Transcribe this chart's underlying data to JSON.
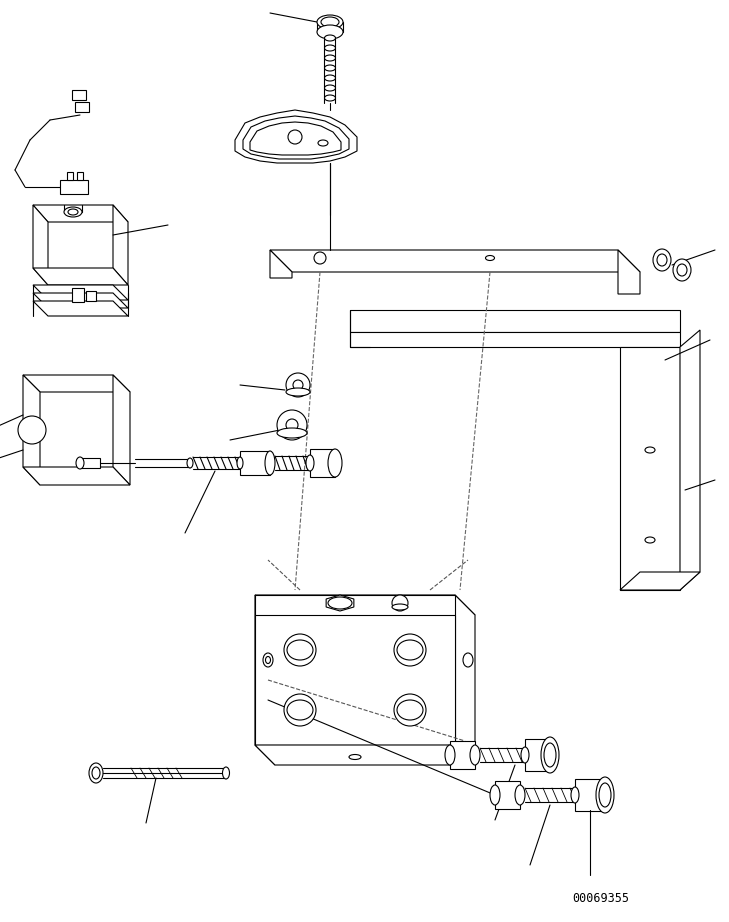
{
  "bg_color": "#ffffff",
  "line_color": "#000000",
  "lw": 0.8,
  "part_number": "00069355",
  "figsize": [
    7.29,
    9.22
  ],
  "dpi": 100
}
